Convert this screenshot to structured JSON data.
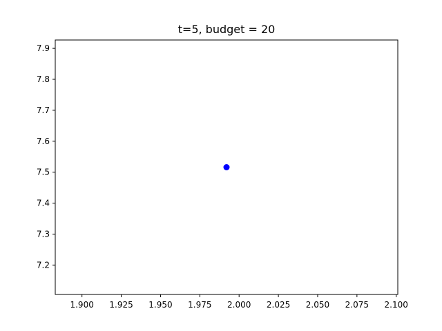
{
  "chart_data": {
    "type": "scatter",
    "title": "t=5, budget = 20",
    "xlabel": "",
    "ylabel": "",
    "xlim": [
      1.883,
      2.101
    ],
    "ylim": [
      7.105,
      7.927
    ],
    "x_ticks": [
      1.9,
      1.925,
      1.95,
      1.975,
      2.0,
      2.025,
      2.05,
      2.075,
      2.1
    ],
    "x_tick_labels": [
      "1.900",
      "1.925",
      "1.950",
      "1.975",
      "2.000",
      "2.025",
      "2.050",
      "2.075",
      "2.100"
    ],
    "y_ticks": [
      7.2,
      7.3,
      7.4,
      7.5,
      7.6,
      7.7,
      7.8,
      7.9
    ],
    "y_tick_labels": [
      "7.2",
      "7.3",
      "7.4",
      "7.5",
      "7.6",
      "7.7",
      "7.8",
      "7.9"
    ],
    "series": [
      {
        "color": "#0000ff",
        "points": [
          {
            "x": 1.992,
            "y": 7.516
          }
        ]
      }
    ],
    "grid": false,
    "legend": "none"
  }
}
